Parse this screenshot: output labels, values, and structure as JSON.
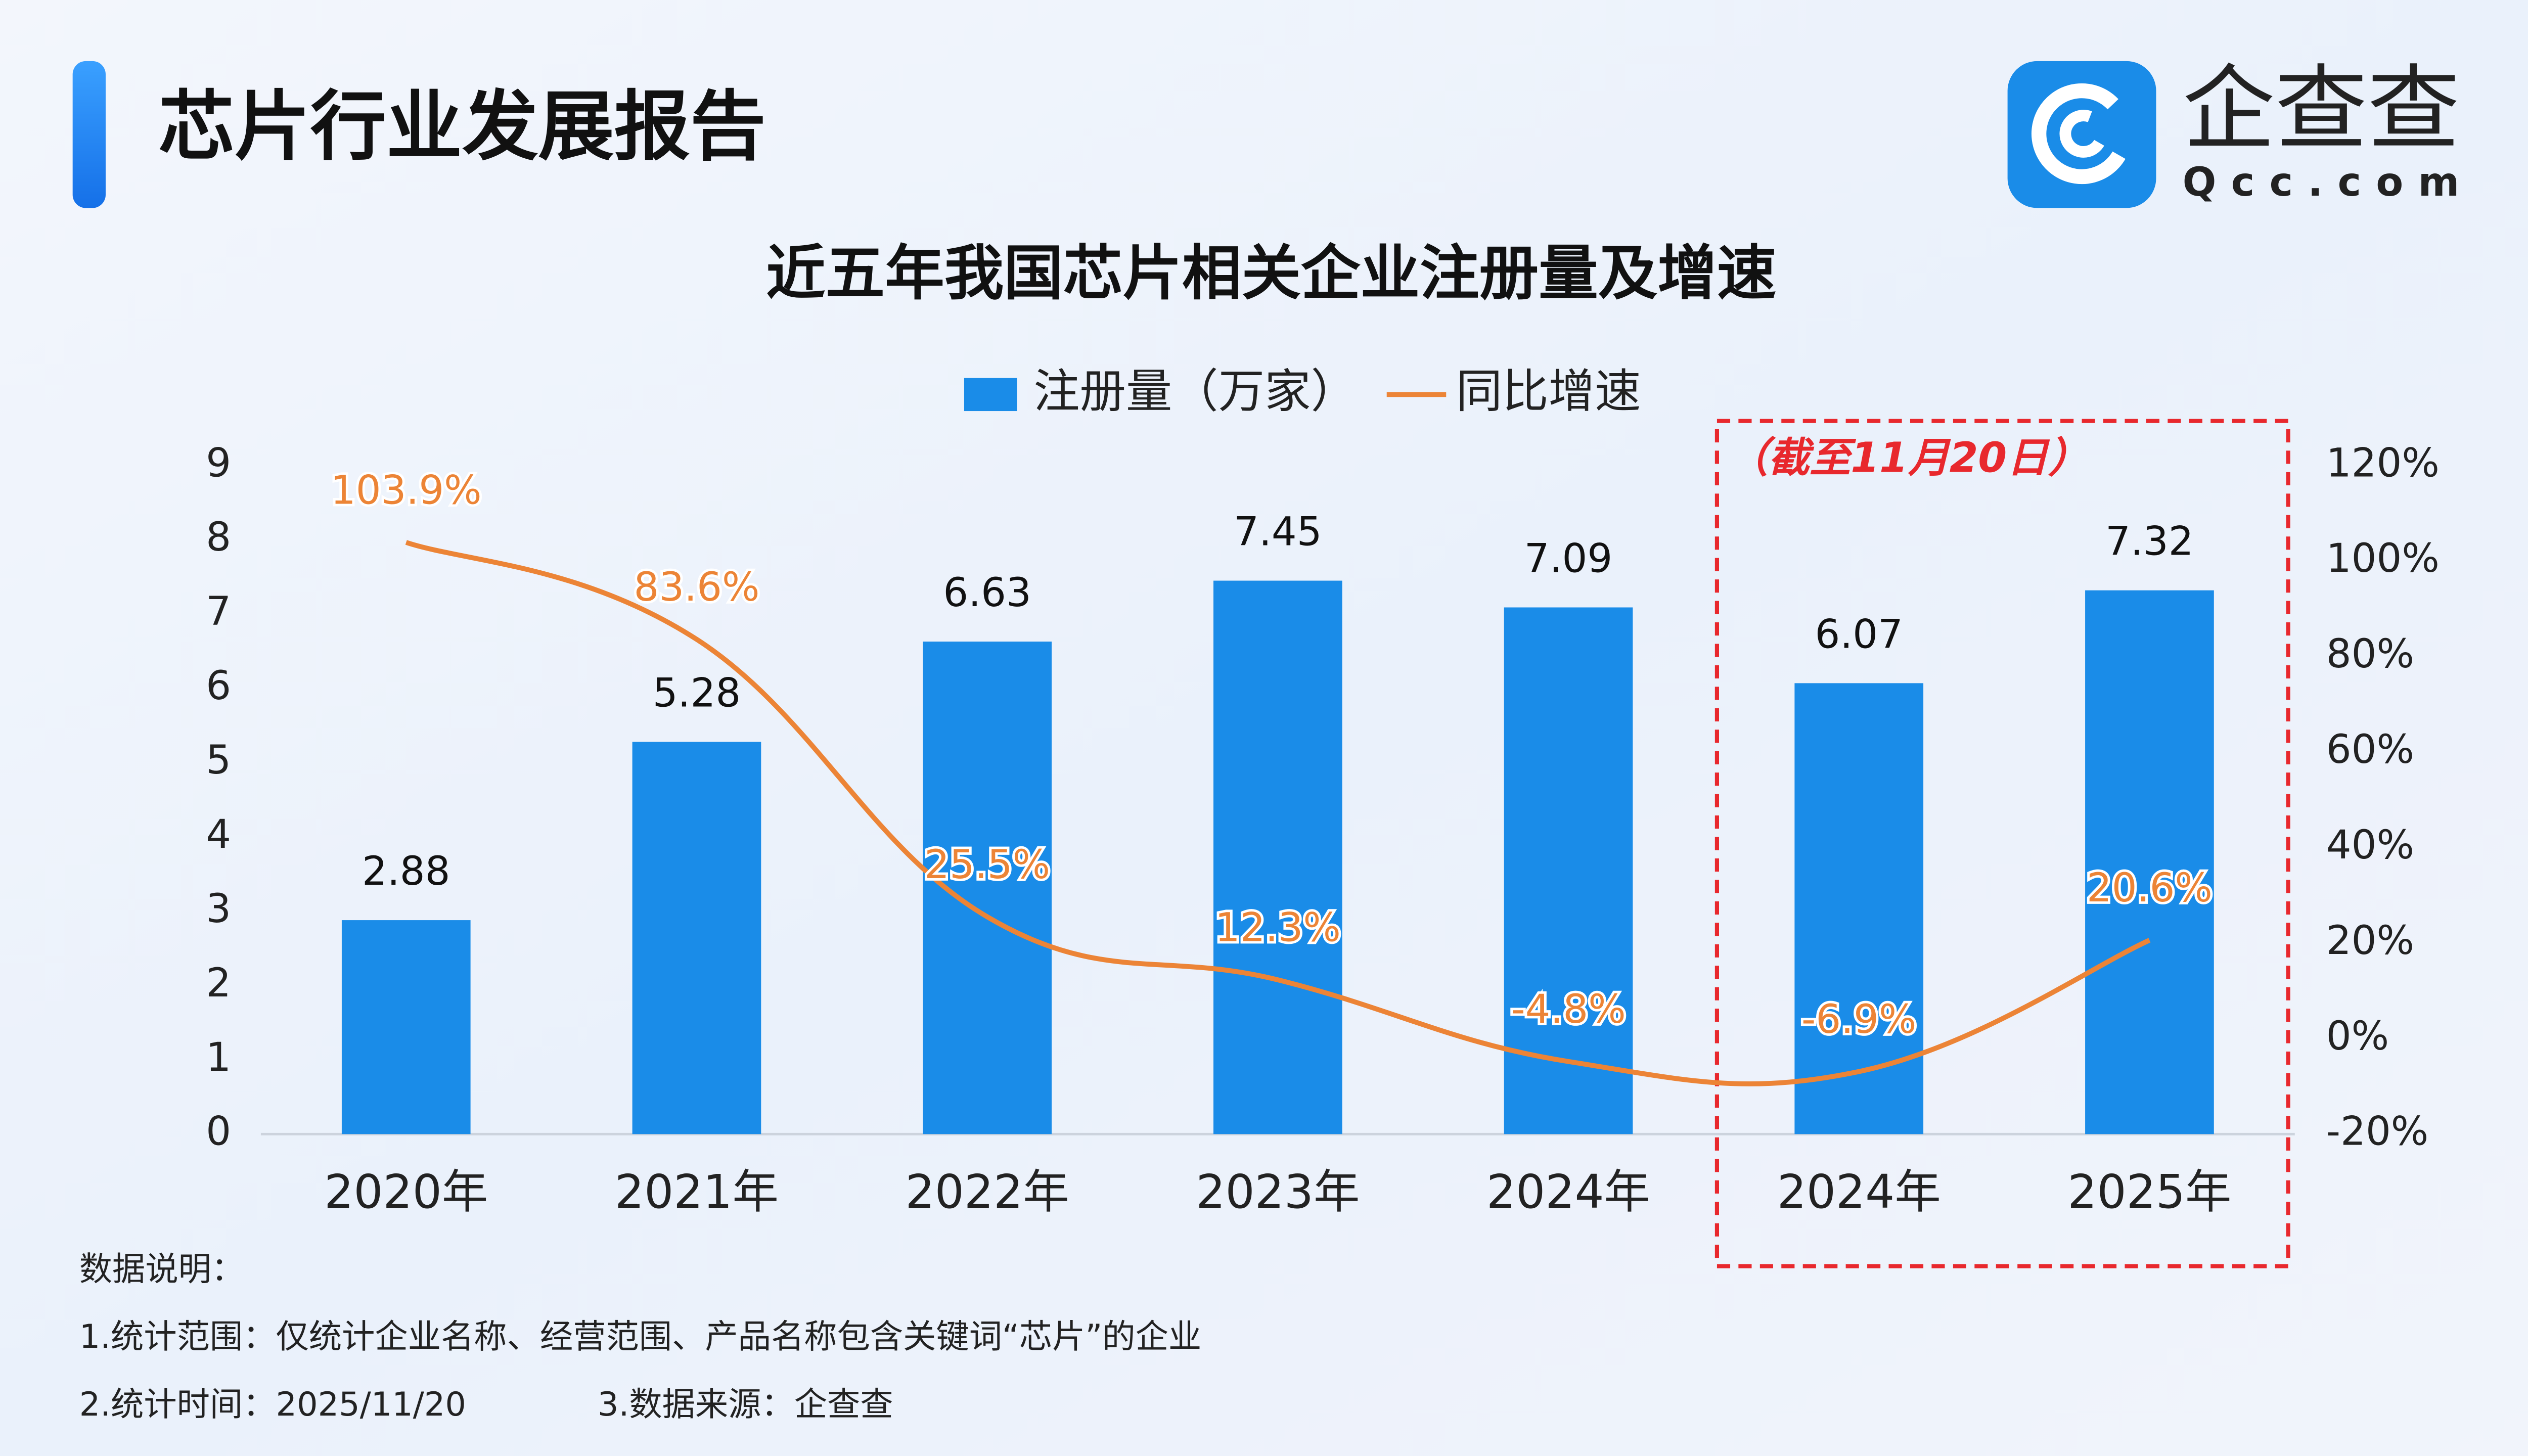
{
  "header": {
    "title": "芯片行业发展报告",
    "logo": "企查查",
    "logo_sub": "Qcc.com"
  },
  "chart_data": {
    "type": "bar",
    "title": "近五年我国芯片相关企业注册量及增速",
    "categories": [
      "2020年",
      "2021年",
      "2022年",
      "2023年",
      "2024年",
      "2024年",
      "2025年"
    ],
    "series": [
      {
        "name": "注册量（万家）",
        "type": "bar",
        "color": "#1a8ce8",
        "values": [
          2.88,
          5.28,
          6.63,
          7.45,
          7.09,
          6.07,
          7.32
        ]
      },
      {
        "name": "同比增速",
        "type": "line",
        "color": "#ec8436",
        "axis": "y2",
        "values": [
          103.9,
          83.6,
          25.5,
          12.3,
          -4.8,
          -6.9,
          20.6
        ],
        "value_labels": [
          "103.9%",
          "83.6%",
          "25.5%",
          "12.3%",
          "-4.8%",
          "-6.9%",
          "20.6%"
        ]
      }
    ],
    "ylim": [
      0,
      9
    ],
    "yticks": [
      0,
      1,
      2,
      3,
      4,
      5,
      6,
      7,
      8,
      9
    ],
    "y2lim": [
      -20,
      120
    ],
    "y2ticks": [
      {
        "value": -20,
        "label": "-20%"
      },
      {
        "value": 0,
        "label": "0%"
      },
      {
        "value": 20,
        "label": "20%"
      },
      {
        "value": 40,
        "label": "40%"
      },
      {
        "value": 60,
        "label": "60%"
      },
      {
        "value": 80,
        "label": "80%"
      },
      {
        "value": 100,
        "label": "100%"
      },
      {
        "value": 120,
        "label": "120%"
      }
    ],
    "annotation": "（截至11月20日）",
    "legend_position": "top"
  },
  "notes": {
    "heading": "数据说明：",
    "items": [
      "1.统计范围：仅统计企业名称、经营范围、产品名称包含关键词“芯片”的企业",
      "2.统计时间：2025/11/20",
      "3.数据来源：企查查"
    ]
  }
}
